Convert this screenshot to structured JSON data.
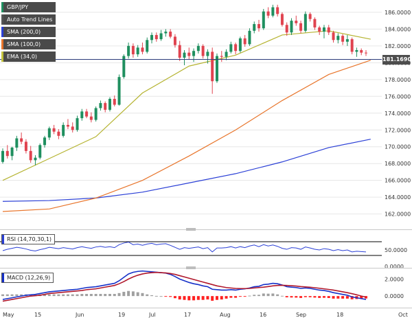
{
  "legend": [
    {
      "label": "GBP/JPY",
      "color": "#1f8f5f"
    },
    {
      "label": "Auto Trend Lines",
      "color": "#555555"
    },
    {
      "label": "SMA (200,0)",
      "color": "#2a3fd6"
    },
    {
      "label": "SMA (100,0)",
      "color": "#e8742a"
    },
    {
      "label": "EMA (34,0)",
      "color": "#c3c23a"
    }
  ],
  "rsi_label": "RSI (14,70,30,1)",
  "macd_label": "MACD (12,26,9)",
  "current_price": "181.1690",
  "colors": {
    "up": "#1f8f5f",
    "down": "#e0434f",
    "sma200": "#2a3fd6",
    "sma100": "#e8742a",
    "ema34": "#b5b330",
    "rsi": "#2a3fd6",
    "macd": "#1530c8",
    "signal": "#b0172b",
    "hist_pos": "#a0a0a0",
    "hist_neg": "#ff2020"
  },
  "chart_data": [
    {
      "type": "candlestick",
      "title": "GBP/JPY",
      "x": [
        "May",
        "15",
        "Jun",
        "19",
        "Jul",
        "17",
        "Aug",
        "16",
        "Sep",
        "18",
        "Oct"
      ],
      "ylim": [
        160.5,
        187.3
      ],
      "yticks": [
        "162.0000",
        "164.0000",
        "166.0000",
        "168.0000",
        "170.0000",
        "172.0000",
        "174.0000",
        "176.0000",
        "178.0000",
        "180.0000",
        "182.0000",
        "184.0000",
        "186.0000"
      ],
      "candles": [
        [
          168.2,
          169.8,
          168.0,
          169.5
        ],
        [
          169.5,
          170.2,
          168.6,
          168.9
        ],
        [
          168.9,
          170.0,
          168.4,
          169.9
        ],
        [
          169.9,
          171.3,
          169.5,
          171.0
        ],
        [
          171.0,
          171.7,
          170.3,
          170.6
        ],
        [
          170.6,
          170.9,
          169.2,
          169.5
        ],
        [
          169.5,
          170.1,
          168.1,
          168.4
        ],
        [
          168.4,
          169.0,
          167.8,
          168.7
        ],
        [
          168.7,
          170.4,
          168.5,
          170.2
        ],
        [
          170.2,
          171.3,
          169.9,
          171.1
        ],
        [
          171.1,
          172.4,
          170.8,
          172.2
        ],
        [
          172.2,
          172.6,
          171.5,
          171.8
        ],
        [
          171.8,
          172.1,
          170.9,
          171.3
        ],
        [
          171.3,
          172.9,
          171.1,
          172.6
        ],
        [
          172.6,
          173.3,
          172.1,
          172.4
        ],
        [
          172.4,
          172.9,
          171.7,
          172.0
        ],
        [
          172.0,
          173.7,
          171.8,
          173.4
        ],
        [
          173.4,
          174.5,
          173.1,
          174.2
        ],
        [
          174.2,
          174.5,
          173.4,
          173.6
        ],
        [
          173.6,
          174.1,
          172.9,
          173.2
        ],
        [
          173.2,
          174.8,
          173.0,
          174.6
        ],
        [
          174.6,
          175.5,
          174.3,
          175.2
        ],
        [
          175.2,
          175.4,
          174.1,
          174.4
        ],
        [
          174.4,
          175.9,
          174.2,
          175.7
        ],
        [
          175.7,
          176.1,
          174.8,
          175.0
        ],
        [
          175.0,
          178.6,
          174.9,
          178.3
        ],
        [
          178.3,
          181.0,
          178.1,
          180.8
        ],
        [
          180.8,
          182.4,
          180.5,
          182.0
        ],
        [
          182.0,
          182.3,
          180.6,
          181.0
        ],
        [
          181.0,
          182.1,
          180.7,
          181.8
        ],
        [
          181.8,
          182.4,
          181.0,
          181.3
        ],
        [
          181.3,
          183.0,
          181.1,
          182.7
        ],
        [
          182.7,
          183.6,
          182.3,
          183.3
        ],
        [
          183.3,
          183.6,
          182.5,
          182.8
        ],
        [
          182.8,
          183.9,
          182.6,
          183.5
        ],
        [
          183.5,
          184.0,
          183.1,
          183.7
        ],
        [
          183.7,
          184.0,
          182.9,
          183.1
        ],
        [
          183.1,
          183.4,
          181.8,
          182.1
        ],
        [
          182.1,
          182.6,
          180.2,
          180.6
        ],
        [
          180.6,
          181.5,
          179.7,
          181.2
        ],
        [
          181.2,
          181.8,
          180.4,
          180.8
        ],
        [
          180.8,
          181.7,
          180.1,
          181.4
        ],
        [
          181.4,
          182.3,
          181.1,
          182.0
        ],
        [
          182.0,
          182.2,
          180.5,
          180.8
        ],
        [
          180.8,
          181.6,
          179.9,
          181.3
        ],
        [
          181.3,
          181.8,
          176.3,
          177.8
        ],
        [
          177.8,
          181.1,
          177.6,
          180.8
        ],
        [
          180.8,
          181.4,
          180.1,
          180.7
        ],
        [
          180.7,
          181.6,
          180.3,
          181.3
        ],
        [
          181.3,
          182.5,
          181.1,
          182.2
        ],
        [
          182.2,
          182.4,
          181.0,
          181.4
        ],
        [
          181.4,
          183.1,
          181.2,
          182.9
        ],
        [
          182.9,
          183.3,
          181.9,
          182.2
        ],
        [
          182.2,
          184.1,
          182.0,
          183.8
        ],
        [
          183.8,
          184.9,
          183.5,
          184.6
        ],
        [
          184.6,
          185.1,
          183.7,
          184.1
        ],
        [
          184.1,
          186.4,
          183.9,
          186.1
        ],
        [
          186.1,
          186.6,
          185.3,
          185.6
        ],
        [
          185.6,
          186.9,
          185.4,
          186.6
        ],
        [
          186.6,
          186.9,
          185.5,
          185.8
        ],
        [
          185.8,
          186.0,
          184.3,
          184.5
        ],
        [
          184.5,
          184.8,
          183.2,
          183.6
        ],
        [
          183.6,
          185.3,
          183.3,
          185.0
        ],
        [
          185.0,
          185.6,
          184.4,
          184.7
        ],
        [
          184.7,
          185.0,
          183.5,
          183.8
        ],
        [
          183.8,
          186.1,
          183.6,
          185.8
        ],
        [
          185.8,
          186.0,
          184.9,
          185.2
        ],
        [
          185.2,
          185.4,
          183.9,
          184.2
        ],
        [
          184.2,
          184.4,
          183.3,
          183.7
        ],
        [
          183.7,
          184.5,
          182.9,
          184.2
        ],
        [
          184.2,
          184.5,
          183.3,
          183.6
        ],
        [
          183.6,
          183.8,
          182.4,
          182.7
        ],
        [
          182.7,
          183.5,
          182.3,
          183.2
        ],
        [
          183.2,
          183.4,
          182.1,
          182.5
        ],
        [
          182.5,
          183.3,
          182.0,
          182.8
        ],
        [
          182.8,
          183.0,
          181.0,
          181.3
        ],
        [
          181.3,
          181.8,
          180.7,
          181.5
        ],
        [
          181.5,
          181.7,
          180.9,
          181.2
        ],
        [
          181.2,
          181.5,
          180.8,
          181.17
        ]
      ],
      "sma200": [
        [
          0,
          163.5
        ],
        [
          10,
          163.6
        ],
        [
          20,
          163.9
        ],
        [
          30,
          164.6
        ],
        [
          40,
          165.7
        ],
        [
          50,
          166.8
        ],
        [
          60,
          168.2
        ],
        [
          70,
          169.9
        ],
        [
          79,
          170.9
        ]
      ],
      "sma100": [
        [
          0,
          162.3
        ],
        [
          10,
          162.6
        ],
        [
          20,
          163.9
        ],
        [
          30,
          166.0
        ],
        [
          40,
          168.9
        ],
        [
          50,
          172.0
        ],
        [
          60,
          175.5
        ],
        [
          70,
          178.6
        ],
        [
          79,
          180.3
        ]
      ],
      "ema34": [
        [
          0,
          166.0
        ],
        [
          10,
          168.6
        ],
        [
          20,
          171.2
        ],
        [
          30,
          176.4
        ],
        [
          40,
          179.6
        ],
        [
          50,
          180.9
        ],
        [
          60,
          183.3
        ],
        [
          70,
          183.8
        ],
        [
          79,
          182.8
        ]
      ]
    },
    {
      "type": "line",
      "title": "RSI (14,70,30,1)",
      "yticks": [
        "50.0000",
        "0.0000"
      ],
      "ylim": [
        0,
        100
      ],
      "levels": [
        70,
        30
      ],
      "values": [
        48,
        52,
        55,
        58,
        56,
        53,
        49,
        47,
        51,
        54,
        58,
        56,
        54,
        57,
        55,
        53,
        57,
        60,
        57,
        55,
        59,
        61,
        58,
        60,
        57,
        66,
        71,
        74,
        66,
        68,
        64,
        68,
        70,
        66,
        68,
        69,
        64,
        58,
        52,
        57,
        55,
        57,
        59,
        54,
        57,
        44,
        56,
        56,
        57,
        60,
        56,
        60,
        57,
        62,
        65,
        60,
        66,
        62,
        65,
        61,
        55,
        52,
        57,
        56,
        52,
        59,
        56,
        52,
        50,
        54,
        52,
        48,
        51,
        48,
        50,
        44,
        46,
        45,
        44
      ]
    },
    {
      "type": "bar",
      "title": "MACD (12,26,9)",
      "yticks": [
        "2.0000",
        "0.0000"
      ],
      "ylim": [
        -1.2,
        3.0
      ],
      "macd": [
        -0.4,
        -0.3,
        -0.2,
        -0.1,
        0.0,
        0.1,
        0.15,
        0.2,
        0.3,
        0.4,
        0.5,
        0.55,
        0.6,
        0.65,
        0.7,
        0.75,
        0.8,
        0.9,
        1.0,
        1.05,
        1.1,
        1.2,
        1.3,
        1.4,
        1.5,
        1.8,
        2.2,
        2.6,
        2.8,
        2.9,
        2.95,
        2.9,
        2.85,
        2.8,
        2.75,
        2.7,
        2.55,
        2.3,
        2.0,
        1.8,
        1.6,
        1.45,
        1.35,
        1.2,
        1.1,
        0.8,
        0.75,
        0.7,
        0.7,
        0.75,
        0.7,
        0.8,
        0.85,
        0.95,
        1.1,
        1.15,
        1.35,
        1.4,
        1.5,
        1.45,
        1.3,
        1.1,
        1.05,
        1.0,
        0.9,
        0.95,
        0.9,
        0.8,
        0.7,
        0.65,
        0.55,
        0.4,
        0.3,
        0.2,
        0.1,
        -0.1,
        -0.2,
        -0.3,
        -0.4
      ],
      "signal": [
        -0.6,
        -0.5,
        -0.4,
        -0.3,
        -0.2,
        -0.1,
        0.0,
        0.05,
        0.1,
        0.2,
        0.3,
        0.35,
        0.4,
        0.45,
        0.5,
        0.55,
        0.6,
        0.65,
        0.75,
        0.8,
        0.85,
        0.95,
        1.05,
        1.15,
        1.25,
        1.45,
        1.7,
        2.0,
        2.25,
        2.45,
        2.6,
        2.7,
        2.75,
        2.78,
        2.75,
        2.72,
        2.65,
        2.55,
        2.4,
        2.25,
        2.1,
        1.95,
        1.8,
        1.65,
        1.5,
        1.35,
        1.2,
        1.1,
        1.0,
        0.95,
        0.9,
        0.88,
        0.88,
        0.9,
        0.95,
        1.0,
        1.05,
        1.12,
        1.2,
        1.25,
        1.27,
        1.25,
        1.22,
        1.18,
        1.12,
        1.08,
        1.04,
        0.98,
        0.92,
        0.85,
        0.78,
        0.7,
        0.6,
        0.5,
        0.4,
        0.28,
        0.15,
        0.0,
        -0.12
      ]
    }
  ],
  "x_labels": [
    "May",
    "15",
    "Jun",
    "19",
    "Jul",
    "17",
    "Aug",
    "16",
    "Sep",
    "18",
    "Oct"
  ]
}
